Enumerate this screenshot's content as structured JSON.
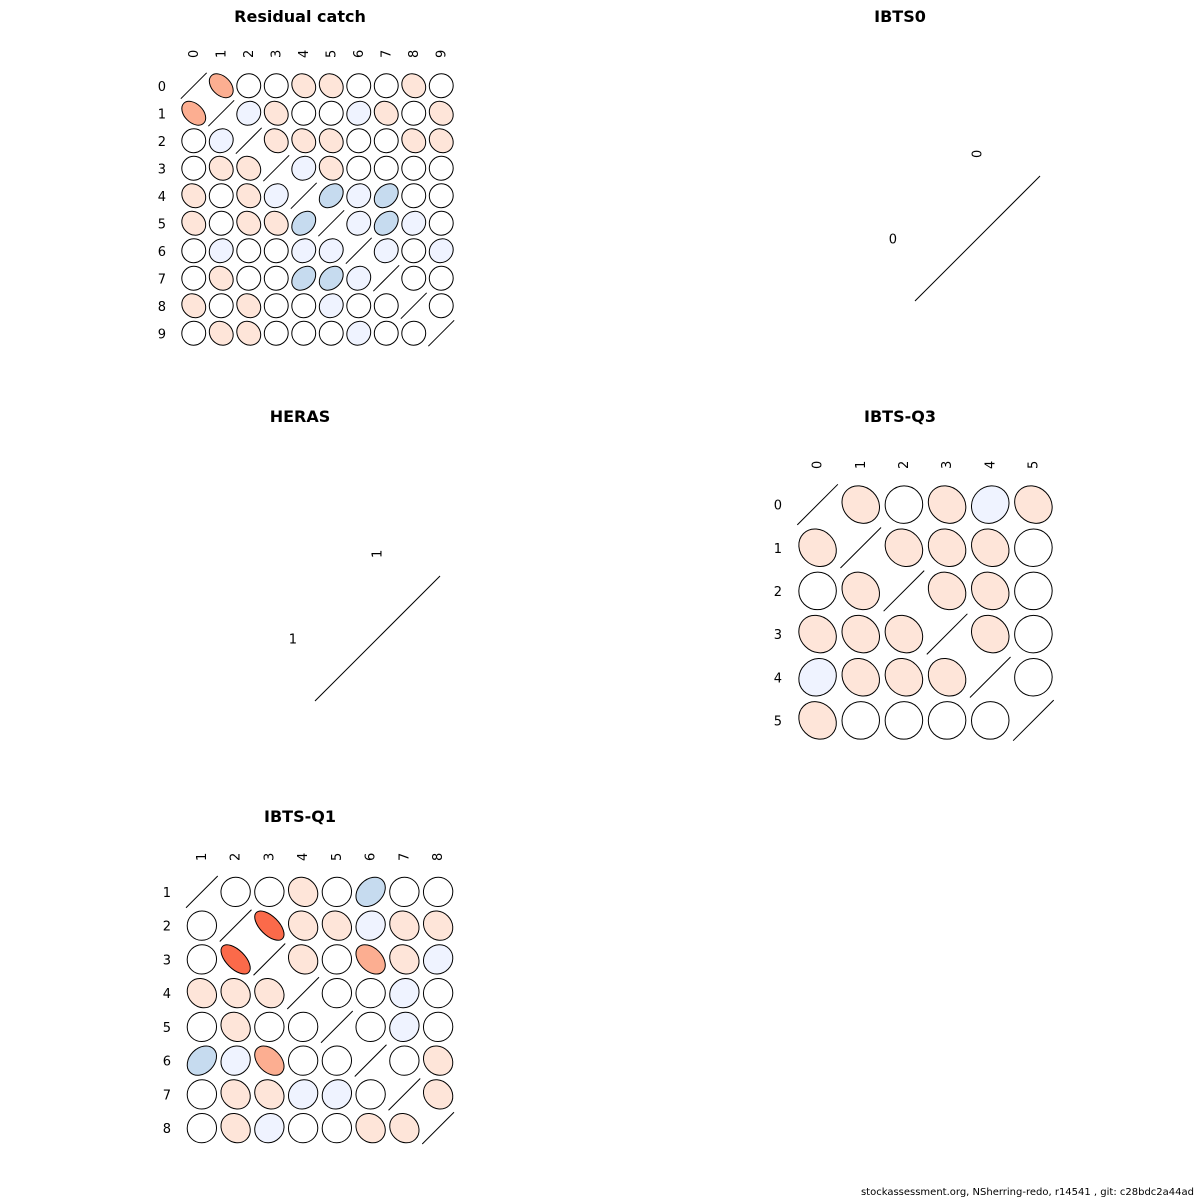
{
  "footer": "stockassessment.org, NSherring-redo, r14541 , git: c28bdc2a44ad",
  "chart_data": [
    {
      "type": "heatmap",
      "title": "Residual catch",
      "labels": [
        "0",
        "1",
        "2",
        "3",
        "4",
        "5",
        "6",
        "7",
        "8",
        "9"
      ],
      "matrix": [
        [
          1.0,
          0.4,
          0.0,
          0.0,
          0.15,
          0.15,
          0.0,
          0.0,
          0.15,
          0.0
        ],
        [
          0.4,
          1.0,
          -0.1,
          0.15,
          0.0,
          0.0,
          -0.1,
          0.15,
          0.0,
          0.15
        ],
        [
          0.0,
          -0.1,
          1.0,
          0.15,
          0.15,
          0.15,
          0.0,
          0.0,
          0.15,
          0.15
        ],
        [
          0.0,
          0.15,
          0.15,
          1.0,
          -0.1,
          0.15,
          0.0,
          0.0,
          0.0,
          0.0
        ],
        [
          0.15,
          0.0,
          0.15,
          -0.1,
          1.0,
          -0.3,
          -0.1,
          -0.3,
          0.0,
          0.0
        ],
        [
          0.15,
          0.0,
          0.15,
          0.15,
          -0.3,
          1.0,
          -0.1,
          -0.3,
          -0.1,
          0.0
        ],
        [
          0.0,
          -0.1,
          0.0,
          0.0,
          -0.1,
          -0.1,
          1.0,
          -0.1,
          0.0,
          -0.1
        ],
        [
          0.0,
          0.15,
          0.0,
          0.0,
          -0.3,
          -0.3,
          -0.1,
          1.0,
          0.0,
          0.0
        ],
        [
          0.15,
          0.0,
          0.15,
          0.0,
          0.0,
          -0.1,
          0.0,
          0.0,
          1.0,
          0.0
        ],
        [
          0.0,
          0.15,
          0.15,
          0.0,
          0.0,
          0.0,
          -0.1,
          0.0,
          0.0,
          1.0
        ]
      ]
    },
    {
      "type": "heatmap",
      "title": "IBTS0",
      "labels": [
        "0"
      ],
      "matrix": [
        [
          1.0
        ]
      ]
    },
    {
      "type": "heatmap",
      "title": "HERAS",
      "labels": [
        "1"
      ],
      "matrix": [
        [
          1.0
        ]
      ]
    },
    {
      "type": "heatmap",
      "title": "IBTS-Q3",
      "labels": [
        "0",
        "1",
        "2",
        "3",
        "4",
        "5"
      ],
      "matrix": [
        [
          1.0,
          0.15,
          0.0,
          0.15,
          -0.1,
          0.15
        ],
        [
          0.15,
          1.0,
          0.15,
          0.15,
          0.15,
          0.0
        ],
        [
          0.0,
          0.15,
          1.0,
          0.15,
          0.15,
          0.0
        ],
        [
          0.15,
          0.15,
          0.15,
          1.0,
          0.15,
          0.0
        ],
        [
          -0.1,
          0.15,
          0.15,
          0.15,
          1.0,
          0.0
        ],
        [
          0.15,
          0.0,
          0.0,
          0.0,
          0.0,
          1.0
        ]
      ]
    },
    {
      "type": "heatmap",
      "title": "IBTS-Q1",
      "labels": [
        "1",
        "2",
        "3",
        "4",
        "5",
        "6",
        "7",
        "8"
      ],
      "matrix": [
        [
          1.0,
          0.0,
          0.0,
          0.15,
          0.0,
          -0.3,
          0.0,
          0.0
        ],
        [
          0.0,
          1.0,
          0.6,
          0.15,
          0.15,
          -0.1,
          0.15,
          0.15
        ],
        [
          0.0,
          0.6,
          1.0,
          0.15,
          0.0,
          0.4,
          0.15,
          -0.1
        ],
        [
          0.15,
          0.15,
          0.15,
          1.0,
          0.0,
          0.0,
          -0.1,
          0.0
        ],
        [
          0.0,
          0.15,
          0.0,
          0.0,
          1.0,
          0.0,
          -0.1,
          0.0
        ],
        [
          -0.3,
          -0.1,
          0.4,
          0.0,
          0.0,
          1.0,
          0.0,
          0.15
        ],
        [
          0.0,
          0.15,
          0.15,
          -0.1,
          -0.1,
          0.0,
          1.0,
          0.15
        ],
        [
          0.0,
          0.15,
          -0.1,
          0.0,
          0.0,
          0.15,
          0.15,
          1.0
        ]
      ]
    }
  ]
}
